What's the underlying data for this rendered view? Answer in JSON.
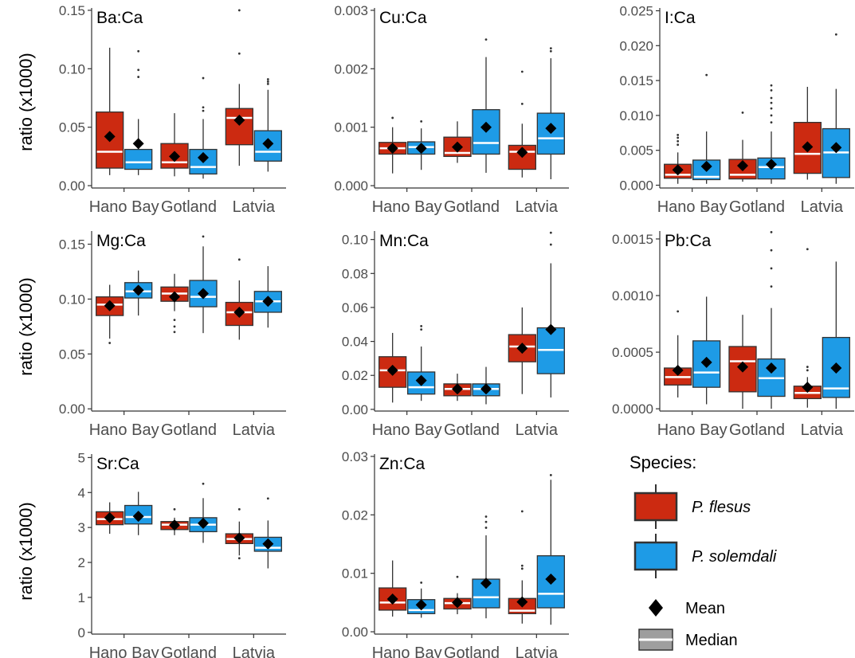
{
  "legend": {
    "title": "Species:",
    "mean_label": "Mean",
    "median_label": "Median"
  },
  "colors": {
    "P. flesus": "#cc2a11",
    "P. solemdali": "#1e9be6",
    "mean_marker": "#000000",
    "median_line": "#ffffff",
    "box_outline": "#333333"
  },
  "chart_data": [
    {
      "type": "box",
      "title": "Ba:Ca",
      "ylabel": "ratio (x1000)",
      "xlabel": "",
      "categories": [
        "Hano Bay",
        "Gotland",
        "Latvia"
      ],
      "ylim": [
        -0.002,
        0.152
      ],
      "yticks": [
        0.0,
        0.05,
        0.1,
        0.15
      ],
      "yticklabels": [
        "0.00",
        "0.05",
        "0.10",
        "0.15"
      ],
      "series": [
        {
          "name": "P. flesus",
          "boxes": [
            {
              "whislo": 0.009,
              "q1": 0.015,
              "med": 0.029,
              "q3": 0.063,
              "whishi": 0.118,
              "mean": 0.042,
              "fliers": []
            },
            {
              "whislo": 0.008,
              "q1": 0.015,
              "med": 0.02,
              "q3": 0.036,
              "whishi": 0.062,
              "mean": 0.025,
              "fliers": []
            },
            {
              "whislo": 0.017,
              "q1": 0.035,
              "med": 0.058,
              "q3": 0.066,
              "whishi": 0.087,
              "mean": 0.056,
              "fliers": [
                0.113,
                0.15
              ]
            }
          ]
        },
        {
          "name": "P. solemdali",
          "boxes": [
            {
              "whislo": 0.009,
              "q1": 0.014,
              "med": 0.02,
              "q3": 0.031,
              "whishi": 0.057,
              "mean": 0.036,
              "fliers": [
                0.093,
                0.099,
                0.115
              ]
            },
            {
              "whislo": 0.006,
              "q1": 0.01,
              "med": 0.016,
              "q3": 0.031,
              "whishi": 0.057,
              "mean": 0.024,
              "fliers": [
                0.064,
                0.067,
                0.092
              ]
            },
            {
              "whislo": 0.012,
              "q1": 0.021,
              "med": 0.029,
              "q3": 0.047,
              "whishi": 0.082,
              "mean": 0.036,
              "fliers": [
                0.087,
                0.089,
                0.091
              ]
            }
          ]
        }
      ]
    },
    {
      "type": "box",
      "title": "Cu:Ca",
      "ylabel": "",
      "xlabel": "",
      "categories": [
        "Hano Bay",
        "Gotland",
        "Latvia"
      ],
      "ylim": [
        -4e-05,
        0.00304
      ],
      "yticks": [
        0.0,
        0.001,
        0.002,
        0.003
      ],
      "yticklabels": [
        "0.000",
        "0.001",
        "0.002",
        "0.003"
      ],
      "series": [
        {
          "name": "P. flesus",
          "boxes": [
            {
              "whislo": 0.00021,
              "q1": 0.00054,
              "med": 0.00064,
              "q3": 0.00074,
              "whishi": 0.001,
              "mean": 0.00064,
              "fliers": [
                0.00116
              ]
            },
            {
              "whislo": 0.00039,
              "q1": 0.0005,
              "med": 0.00056,
              "q3": 0.00083,
              "whishi": 0.0011,
              "mean": 0.00066,
              "fliers": []
            },
            {
              "whislo": 0.00014,
              "q1": 0.00028,
              "med": 0.00058,
              "q3": 0.00069,
              "whishi": 0.00106,
              "mean": 0.00057,
              "fliers": [
                0.0014,
                0.00195
              ]
            }
          ]
        },
        {
          "name": "P. solemdali",
          "boxes": [
            {
              "whislo": 0.00027,
              "q1": 0.00054,
              "med": 0.00066,
              "q3": 0.00075,
              "whishi": 0.00098,
              "mean": 0.00064,
              "fliers": [
                0.0011
              ]
            },
            {
              "whislo": 0.00022,
              "q1": 0.00054,
              "med": 0.00073,
              "q3": 0.0013,
              "whishi": 0.0022,
              "mean": 0.001,
              "fliers": [
                0.0025
              ]
            },
            {
              "whislo": 0.00011,
              "q1": 0.00054,
              "med": 0.00081,
              "q3": 0.00124,
              "whishi": 0.00218,
              "mean": 0.00098,
              "fliers": [
                0.0023,
                0.00235
              ]
            }
          ]
        }
      ]
    },
    {
      "type": "box",
      "title": "I:Ca",
      "ylabel": "",
      "xlabel": "",
      "categories": [
        "Hano Bay",
        "Gotland",
        "Latvia"
      ],
      "ylim": [
        -0.0004,
        0.0254
      ],
      "yticks": [
        0.0,
        0.005,
        0.01,
        0.015,
        0.02,
        0.025
      ],
      "yticklabels": [
        "0.000",
        "0.005",
        "0.010",
        "0.015",
        "0.020",
        "0.025"
      ],
      "series": [
        {
          "name": "P. flesus",
          "boxes": [
            {
              "whislo": 0.0002,
              "q1": 0.001,
              "med": 0.0015,
              "q3": 0.003,
              "whishi": 0.0047,
              "mean": 0.0022,
              "fliers": [
                0.0058,
                0.0063,
                0.0068,
                0.0072
              ]
            },
            {
              "whislo": 0.0005,
              "q1": 0.0009,
              "med": 0.0015,
              "q3": 0.0037,
              "whishi": 0.0065,
              "mean": 0.0028,
              "fliers": [
                0.0104
              ]
            },
            {
              "whislo": 0.0008,
              "q1": 0.0017,
              "med": 0.0045,
              "q3": 0.009,
              "whishi": 0.0141,
              "mean": 0.0055,
              "fliers": []
            }
          ]
        },
        {
          "name": "P. solemdali",
          "boxes": [
            {
              "whislo": 0.0002,
              "q1": 0.0008,
              "med": 0.0012,
              "q3": 0.0036,
              "whishi": 0.0077,
              "mean": 0.0027,
              "fliers": [
                0.0158
              ]
            },
            {
              "whislo": 0.0002,
              "q1": 0.0009,
              "med": 0.0026,
              "q3": 0.0039,
              "whishi": 0.0077,
              "mean": 0.003,
              "fliers": [
                0.009,
                0.01,
                0.011,
                0.0118,
                0.0125,
                0.0136,
                0.0143
              ]
            },
            {
              "whislo": 0.0002,
              "q1": 0.0011,
              "med": 0.0047,
              "q3": 0.0081,
              "whishi": 0.0138,
              "mean": 0.0054,
              "fliers": [
                0.0216
              ]
            }
          ]
        }
      ]
    },
    {
      "type": "box",
      "title": "Mg:Ca",
      "ylabel": "ratio (x1000)",
      "xlabel": "",
      "categories": [
        "Hano Bay",
        "Gotland",
        "Latvia"
      ],
      "ylim": [
        -0.002,
        0.162
      ],
      "yticks": [
        0.0,
        0.05,
        0.1,
        0.15
      ],
      "yticklabels": [
        "0.00",
        "0.05",
        "0.10",
        "0.15"
      ],
      "series": [
        {
          "name": "P. flesus",
          "boxes": [
            {
              "whislo": 0.064,
              "q1": 0.085,
              "med": 0.095,
              "q3": 0.102,
              "whishi": 0.113,
              "mean": 0.094,
              "fliers": [
                0.06
              ]
            },
            {
              "whislo": 0.089,
              "q1": 0.098,
              "med": 0.105,
              "q3": 0.111,
              "whishi": 0.123,
              "mean": 0.102,
              "fliers": [
                0.07,
                0.075,
                0.081
              ]
            },
            {
              "whislo": 0.063,
              "q1": 0.076,
              "med": 0.088,
              "q3": 0.097,
              "whishi": 0.117,
              "mean": 0.088,
              "fliers": [
                0.136
              ]
            }
          ]
        },
        {
          "name": "P. solemdali",
          "boxes": [
            {
              "whislo": 0.085,
              "q1": 0.101,
              "med": 0.107,
              "q3": 0.115,
              "whishi": 0.126,
              "mean": 0.108,
              "fliers": [
                0.152
              ]
            },
            {
              "whislo": 0.069,
              "q1": 0.093,
              "med": 0.102,
              "q3": 0.117,
              "whishi": 0.148,
              "mean": 0.105,
              "fliers": [
                0.157
              ]
            },
            {
              "whislo": 0.074,
              "q1": 0.088,
              "med": 0.098,
              "q3": 0.107,
              "whishi": 0.13,
              "mean": 0.098,
              "fliers": []
            }
          ]
        }
      ]
    },
    {
      "type": "box",
      "title": "Mn:Ca",
      "ylabel": "",
      "xlabel": "",
      "categories": [
        "Hano Bay",
        "Gotland",
        "Latvia"
      ],
      "ylim": [
        -0.001,
        0.105
      ],
      "yticks": [
        0.0,
        0.02,
        0.04,
        0.06,
        0.08,
        0.1
      ],
      "yticklabels": [
        "0.00",
        "0.02",
        "0.04",
        "0.06",
        "0.08",
        "0.10"
      ],
      "series": [
        {
          "name": "P. flesus",
          "boxes": [
            {
              "whislo": 0.004,
              "q1": 0.013,
              "med": 0.023,
              "q3": 0.031,
              "whishi": 0.045,
              "mean": 0.023,
              "fliers": []
            },
            {
              "whislo": 0.005,
              "q1": 0.008,
              "med": 0.012,
              "q3": 0.015,
              "whishi": 0.021,
              "mean": 0.012,
              "fliers": []
            },
            {
              "whislo": 0.009,
              "q1": 0.028,
              "med": 0.037,
              "q3": 0.044,
              "whishi": 0.06,
              "mean": 0.036,
              "fliers": []
            }
          ]
        },
        {
          "name": "P. solemdali",
          "boxes": [
            {
              "whislo": 0.005,
              "q1": 0.009,
              "med": 0.013,
              "q3": 0.022,
              "whishi": 0.037,
              "mean": 0.017,
              "fliers": [
                0.047,
                0.049
              ]
            },
            {
              "whislo": 0.003,
              "q1": 0.008,
              "med": 0.012,
              "q3": 0.015,
              "whishi": 0.025,
              "mean": 0.012,
              "fliers": []
            },
            {
              "whislo": 0.007,
              "q1": 0.021,
              "med": 0.035,
              "q3": 0.048,
              "whishi": 0.086,
              "mean": 0.047,
              "fliers": [
                0.097,
                0.104
              ]
            }
          ]
        }
      ]
    },
    {
      "type": "box",
      "title": "Pb:Ca",
      "ylabel": "",
      "xlabel": "",
      "categories": [
        "Hano Bay",
        "Gotland",
        "Latvia"
      ],
      "ylim": [
        -2e-05,
        0.00157
      ],
      "yticks": [
        0.0,
        0.0005,
        0.001,
        0.0015
      ],
      "yticklabels": [
        "0.0000",
        "0.0005",
        "0.0010",
        "0.0015"
      ],
      "series": [
        {
          "name": "P. flesus",
          "boxes": [
            {
              "whislo": 0.0001,
              "q1": 0.00021,
              "med": 0.00028,
              "q3": 0.00036,
              "whishi": 0.00065,
              "mean": 0.00034,
              "fliers": [
                0.00086
              ]
            },
            {
              "whislo": 0.0,
              "q1": 0.00015,
              "med": 0.00042,
              "q3": 0.00055,
              "whishi": 0.00083,
              "mean": 0.00037,
              "fliers": []
            },
            {
              "whislo": 1e-05,
              "q1": 9e-05,
              "med": 0.00014,
              "q3": 0.0002,
              "whishi": 0.00028,
              "mean": 0.00019,
              "fliers": [
                0.00034,
                0.00037,
                0.00141
              ]
            }
          ]
        },
        {
          "name": "P. solemdali",
          "boxes": [
            {
              "whislo": 4e-05,
              "q1": 0.00019,
              "med": 0.00032,
              "q3": 0.0006,
              "whishi": 0.00099,
              "mean": 0.00041,
              "fliers": []
            },
            {
              "whislo": 0.0,
              "q1": 0.00011,
              "med": 0.00027,
              "q3": 0.00044,
              "whishi": 0.00089,
              "mean": 0.00036,
              "fliers": [
                0.00108,
                0.00124,
                0.0014,
                0.00156
              ]
            },
            {
              "whislo": 0.0,
              "q1": 0.0001,
              "med": 0.00018,
              "q3": 0.00063,
              "whishi": 0.0013,
              "mean": 0.00036,
              "fliers": []
            }
          ]
        }
      ]
    },
    {
      "type": "box",
      "title": "Sr:Ca",
      "ylabel": "ratio (x1000)",
      "xlabel": "",
      "categories": [
        "Hano Bay",
        "Gotland",
        "Latvia"
      ],
      "ylim": [
        -0.05,
        5.1
      ],
      "yticks": [
        0,
        1,
        2,
        3,
        4,
        5
      ],
      "yticklabels": [
        "0",
        "1",
        "2",
        "3",
        "4",
        "5"
      ],
      "series": [
        {
          "name": "P. flesus",
          "boxes": [
            {
              "whislo": 2.82,
              "q1": 3.08,
              "med": 3.24,
              "q3": 3.45,
              "whishi": 3.72,
              "mean": 3.28,
              "fliers": []
            },
            {
              "whislo": 2.78,
              "q1": 2.94,
              "med": 3.08,
              "q3": 3.17,
              "whishi": 3.28,
              "mean": 3.07,
              "fliers": [
                3.52
              ]
            },
            {
              "whislo": 2.2,
              "q1": 2.54,
              "med": 2.67,
              "q3": 2.82,
              "whishi": 3.17,
              "mean": 2.7,
              "fliers": [
                2.12,
                3.52
              ]
            }
          ]
        },
        {
          "name": "P. solemdali",
          "boxes": [
            {
              "whislo": 2.78,
              "q1": 3.1,
              "med": 3.3,
              "q3": 3.63,
              "whishi": 4.02,
              "mean": 3.32,
              "fliers": []
            },
            {
              "whislo": 2.56,
              "q1": 2.88,
              "med": 3.08,
              "q3": 3.28,
              "whishi": 3.84,
              "mean": 3.12,
              "fliers": [
                4.25
              ]
            },
            {
              "whislo": 1.83,
              "q1": 2.32,
              "med": 2.42,
              "q3": 2.72,
              "whishi": 3.2,
              "mean": 2.53,
              "fliers": [
                3.83
              ]
            }
          ]
        }
      ]
    },
    {
      "type": "box",
      "title": "Zn:Ca",
      "ylabel": "",
      "xlabel": "",
      "categories": [
        "Hano Bay",
        "Gotland",
        "Latvia"
      ],
      "ylim": [
        -0.0004,
        0.0304
      ],
      "yticks": [
        0.0,
        0.01,
        0.02,
        0.03
      ],
      "yticklabels": [
        "0.00",
        "0.01",
        "0.02",
        "0.03"
      ],
      "series": [
        {
          "name": "P. flesus",
          "boxes": [
            {
              "whislo": 0.0026,
              "q1": 0.0037,
              "med": 0.005,
              "q3": 0.0075,
              "whishi": 0.0122,
              "mean": 0.0056,
              "fliers": []
            },
            {
              "whislo": 0.003,
              "q1": 0.0039,
              "med": 0.0049,
              "q3": 0.0057,
              "whishi": 0.0066,
              "mean": 0.005,
              "fliers": [
                0.0094
              ]
            },
            {
              "whislo": 0.0014,
              "q1": 0.0031,
              "med": 0.0036,
              "q3": 0.0057,
              "whishi": 0.0088,
              "mean": 0.0051,
              "fliers": [
                0.0108,
                0.0113,
                0.0206
              ]
            }
          ]
        },
        {
          "name": "P. solemdali",
          "boxes": [
            {
              "whislo": 0.0024,
              "q1": 0.0031,
              "med": 0.0037,
              "q3": 0.0055,
              "whishi": 0.0074,
              "mean": 0.0046,
              "fliers": [
                0.0084
              ]
            },
            {
              "whislo": 0.0023,
              "q1": 0.0041,
              "med": 0.0059,
              "q3": 0.009,
              "whishi": 0.0165,
              "mean": 0.0083,
              "fliers": [
                0.0178,
                0.0188,
                0.0197
              ]
            },
            {
              "whislo": 0.0012,
              "q1": 0.0041,
              "med": 0.0065,
              "q3": 0.013,
              "whishi": 0.026,
              "mean": 0.009,
              "fliers": [
                0.0268
              ]
            }
          ]
        }
      ]
    }
  ]
}
